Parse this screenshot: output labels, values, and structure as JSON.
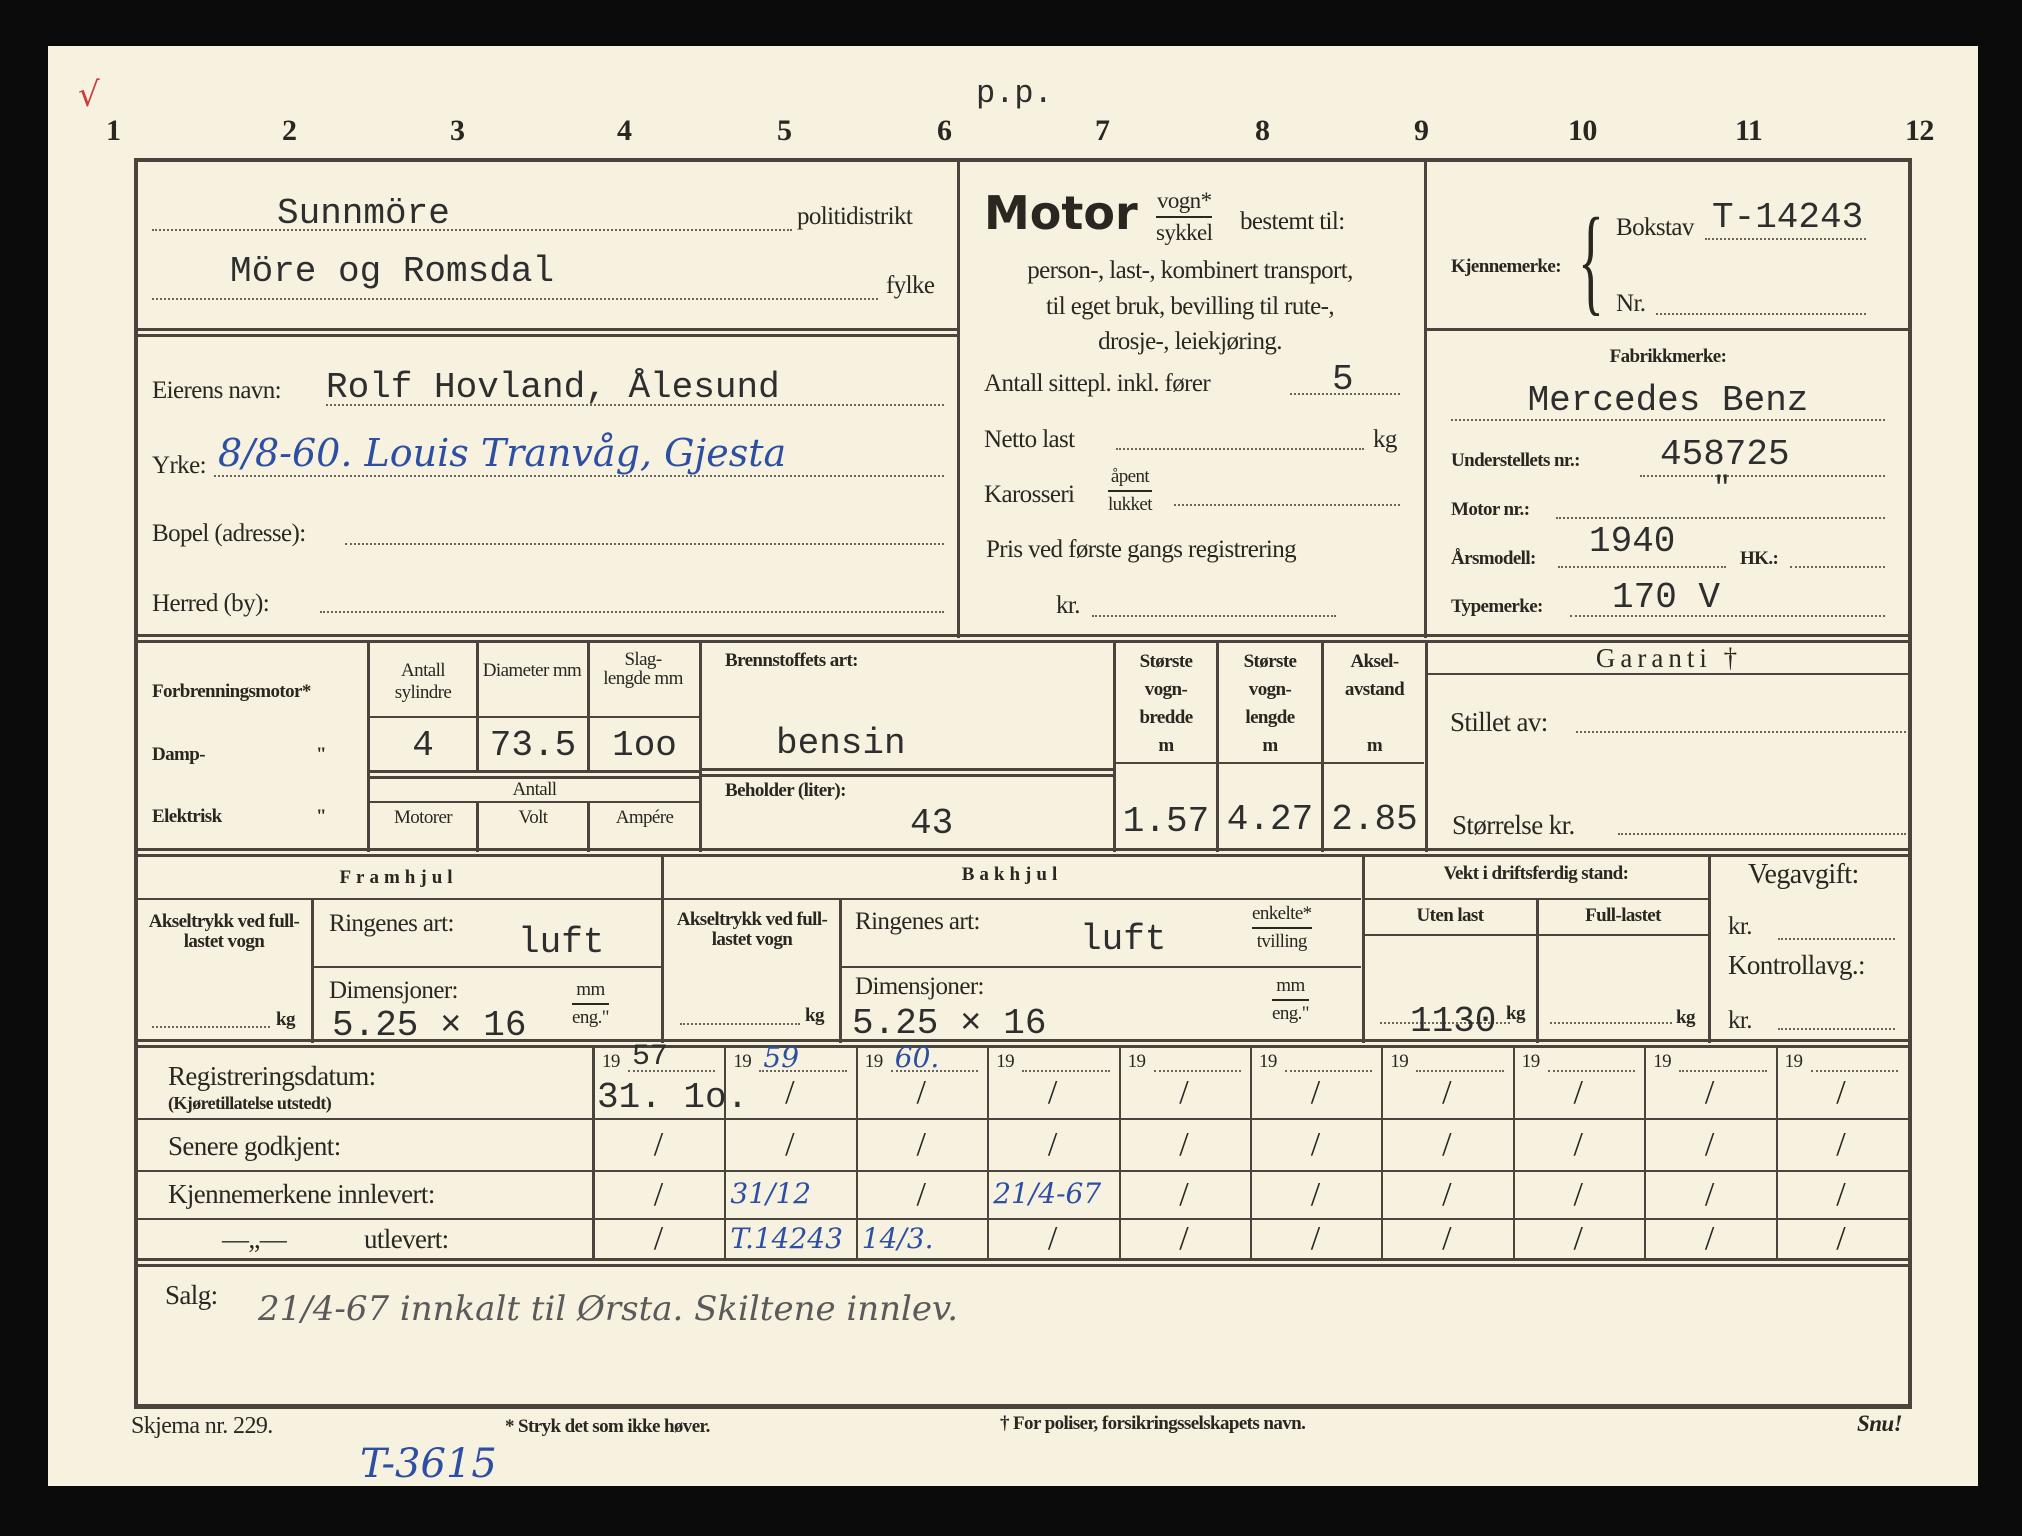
{
  "header": {
    "column_numbers": [
      "1",
      "2",
      "3",
      "4",
      "5",
      "6",
      "7",
      "8",
      "9",
      "10",
      "11",
      "12"
    ],
    "pp": "p.p."
  },
  "district": {
    "value": "Sunnmöre",
    "label": "politidistrikt"
  },
  "county": {
    "value": "Möre og Romsdal",
    "label": "fylke"
  },
  "owner": {
    "name_label": "Eierens navn:",
    "name_value": "Rolf Hovland, Ålesund",
    "occupation_label": "Yrke:",
    "occupation_handwritten": "8/8-60. Louis Tranvåg, Gjesta",
    "address_label": "Bopel (adresse):",
    "municipality_label": "Herred (by):"
  },
  "motor": {
    "title": "Motor",
    "frac_top": "vogn*",
    "frac_bottom": "sykkel",
    "intended": "bestemt til:",
    "purpose_lines": [
      "person-, last-, kombinert transport,",
      "til eget bruk, bevilling til rute-,",
      "drosje-, leiekjøring."
    ],
    "seats_label": "Antall sittepl. inkl. fører",
    "seats_value": "5",
    "net_load_label": "Netto last",
    "net_load_unit": "kg",
    "body_label": "Karosseri",
    "body_open": "åpent",
    "body_closed": "lukket",
    "price_label": "Pris ved første gangs registrering",
    "price_unit": "kr."
  },
  "plate": {
    "label": "Kjennemerke:",
    "letter_label": "Bokstav",
    "letter_value": "T-14243",
    "number_label": "Nr."
  },
  "make": {
    "label": "Fabrikkmerke:",
    "value": "Mercedes Benz",
    "chassis_label": "Understellets nr.:",
    "chassis_value": "458725",
    "engine_no_label": "Motor nr.:",
    "engine_no_value": "\"",
    "model_year_label": "Årsmodell:",
    "model_year_value": "1940",
    "hp_label": "HK.:",
    "type_label": "Typemerke:",
    "type_value": "170 V"
  },
  "engine": {
    "kinds": [
      "Forbrenningsmotor*",
      "Damp-",
      "Elektrisk"
    ],
    "ditto": "\"",
    "headers": [
      "Antall sylindre",
      "Diameter mm",
      "Slag- lengde mm"
    ],
    "values": [
      "4",
      "73.5",
      "1oo"
    ],
    "antall": "Antall",
    "electric_headers": [
      "Motorer",
      "Volt",
      "Ampére"
    ],
    "fuel_label": "Brennstoffets art:",
    "fuel_value": "bensin",
    "tank_label": "Beholder (liter):",
    "tank_value": "43"
  },
  "dimensions": {
    "headers": [
      [
        "Største",
        "vogn-",
        "bredde",
        "m"
      ],
      [
        "Største",
        "vogn-",
        "lengde",
        "m"
      ],
      [
        "Aksel-",
        "avstand",
        "",
        "m"
      ]
    ],
    "values": [
      "1.57",
      "4.27",
      "2.85"
    ]
  },
  "guarantee": {
    "title": "Garanti †",
    "issued_by_label": "Stillet av:",
    "amount_label": "Størrelse kr."
  },
  "front_wheel": {
    "title": "Framhjul",
    "axle_label": "Akseltrykk ved full-lastet vogn",
    "axle_unit": "kg",
    "tire_label": "Ringenes art:",
    "tire_value": "luft",
    "dim_label": "Dimensjoner:",
    "dim_value": "5.25 × 16",
    "unit_top": "mm",
    "unit_bottom": "eng.\""
  },
  "rear_wheel": {
    "title": "Bakhjul",
    "axle_label": "Akseltrykk ved full-lastet vogn",
    "axle_unit": "kg",
    "tire_label": "Ringenes art:",
    "tire_value": "luft",
    "single": "enkelte*",
    "twin": "tvilling",
    "dim_label": "Dimensjoner:",
    "dim_value": "5.25 × 16",
    "unit_top": "mm",
    "unit_bottom": "eng.\""
  },
  "weight": {
    "title": "Vekt i driftsferdig stand:",
    "empty_label": "Uten last",
    "full_label": "Full-lastet",
    "empty_value": "1130",
    "unit": "kg"
  },
  "road_tax": {
    "title": "Vegavgift:",
    "kr": "kr.",
    "control_label": "Kontrollavg.:"
  },
  "registration": {
    "date_label": "Registreringsdatum:",
    "date_sub": "(Kjøretillatelse utstedt)",
    "approved_label": "Senere godkjent:",
    "plates_in_label": "Kjennemerkene innlevert:",
    "ditto": "—„—",
    "plates_out_label": "utlevert:",
    "year_prefix": "19",
    "slash": "/",
    "years": [
      "57",
      "59",
      "60.",
      "",
      "",
      "",
      "",
      "",
      "",
      ""
    ],
    "first_date": "31. 1o.",
    "plates_in": [
      "",
      "31/12",
      "",
      "21/4-67",
      "",
      "",
      "",
      "",
      "",
      ""
    ],
    "plates_out": [
      "",
      "T.14243",
      "14/3.",
      "",
      "",
      "",
      "",
      "",
      "",
      ""
    ]
  },
  "sale": {
    "label": "Salg:",
    "handwritten": "21/4-67 innkalt til Ørsta. Skiltene innlev."
  },
  "footer": {
    "form_no": "Skjema nr. 229.",
    "note_star": "* Stryk det som ikke høver.",
    "note_dagger": "† For poliser, forsikringsselskapets navn.",
    "turn": "Snu!",
    "handwritten_ref": "T-3615"
  },
  "colors": {
    "paper": "#f7f2e0",
    "ink": "#2b2620",
    "pen_blue": "#2c4ea3",
    "check_red": "#c8413a"
  }
}
